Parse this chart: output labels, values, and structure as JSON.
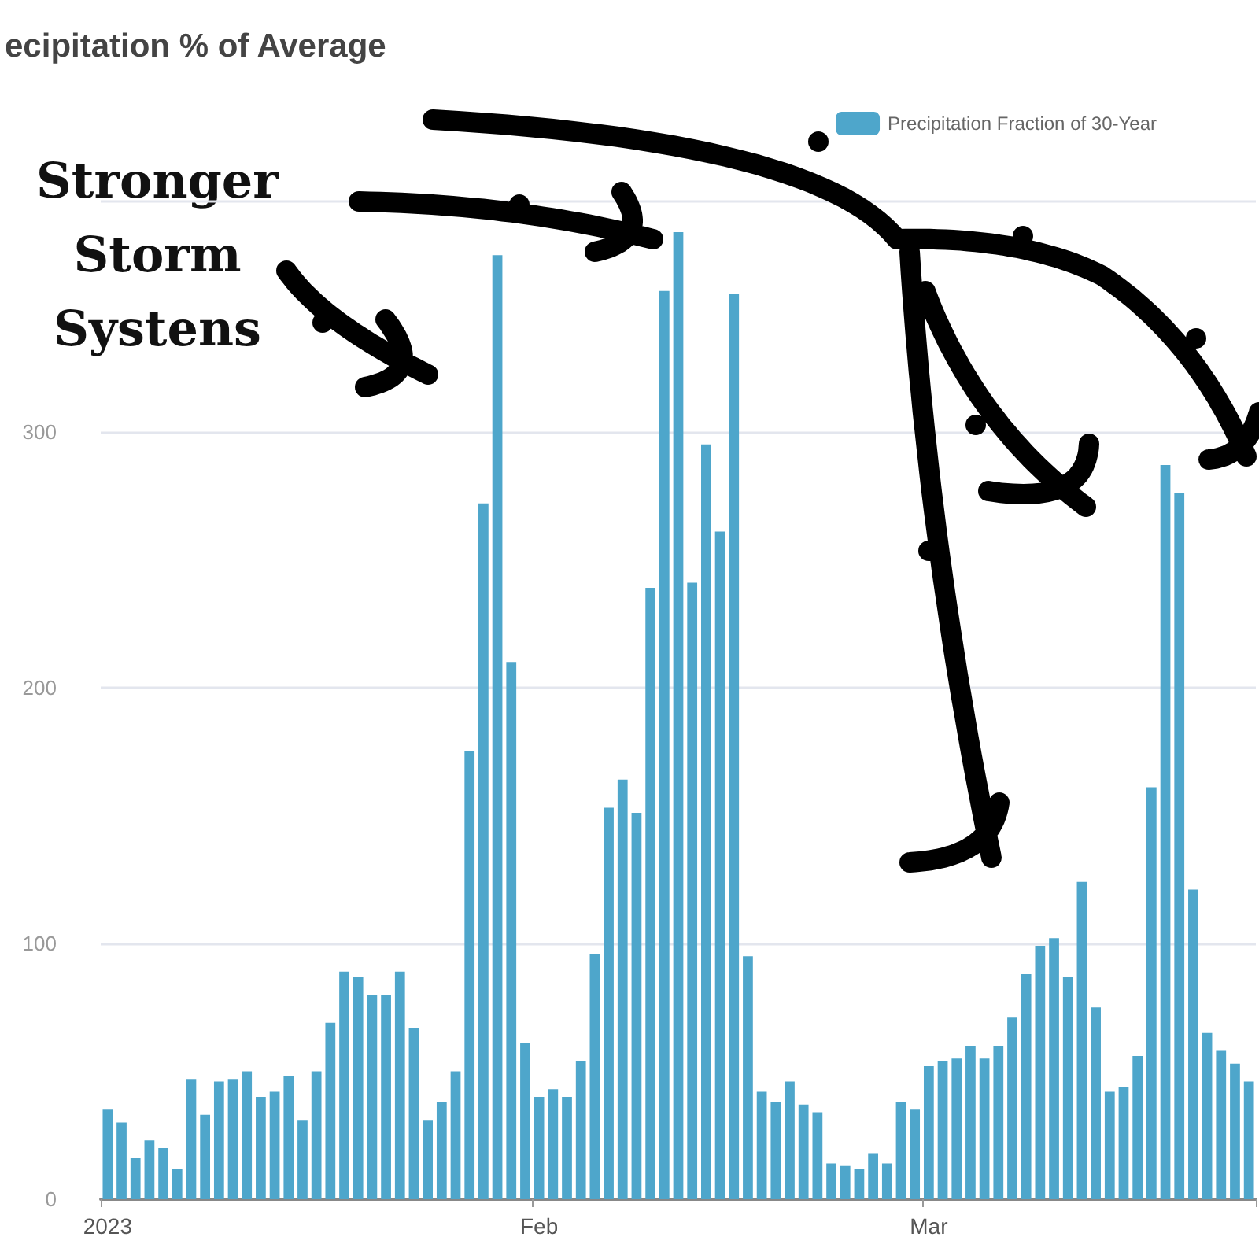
{
  "chart_data": {
    "type": "bar",
    "title": "ecipitation % of Average",
    "categories": [
      "2023",
      null,
      null,
      null,
      null,
      null,
      null,
      null,
      null,
      null,
      null,
      null,
      null,
      null,
      null,
      null,
      null,
      null,
      null,
      null,
      null,
      null,
      null,
      null,
      null,
      null,
      null,
      null,
      null,
      null,
      null,
      "Feb",
      null,
      null,
      null,
      null,
      null,
      null,
      null,
      null,
      null,
      null,
      null,
      null,
      null,
      null,
      null,
      null,
      null,
      null,
      null,
      null,
      null,
      null,
      null,
      null,
      null,
      null,
      null,
      "Mar",
      null,
      null,
      null,
      null,
      null,
      null,
      null,
      null,
      null,
      null,
      null,
      null,
      null,
      null,
      null,
      null,
      null,
      null,
      null,
      null,
      null,
      null,
      null
    ],
    "series": [
      {
        "name": "Precipitation Fraction of 30-Year",
        "color": "#4ea6cb",
        "values": [
          35,
          30,
          16,
          23,
          20,
          12,
          47,
          33,
          46,
          47,
          50,
          40,
          42,
          48,
          31,
          50,
          69,
          89,
          87,
          80,
          80,
          89,
          67,
          31,
          38,
          50,
          175,
          272,
          369,
          210,
          61,
          40,
          43,
          40,
          54,
          96,
          153,
          164,
          151,
          239,
          355,
          378,
          241,
          295,
          261,
          354,
          95,
          42,
          38,
          46,
          37,
          34,
          14,
          13,
          12,
          18,
          14,
          38,
          35,
          52,
          54,
          55,
          60,
          55,
          60,
          71,
          88,
          99,
          102,
          87,
          124,
          75,
          42,
          44,
          56,
          161,
          287,
          276,
          121,
          65,
          58,
          53,
          46
        ]
      }
    ],
    "ylim": [
      0,
      390
    ],
    "yticks": [
      0,
      100,
      200,
      300
    ],
    "grid": "y",
    "legend": "top right",
    "annotations": [
      "Stronger Storm Systens"
    ]
  }
}
